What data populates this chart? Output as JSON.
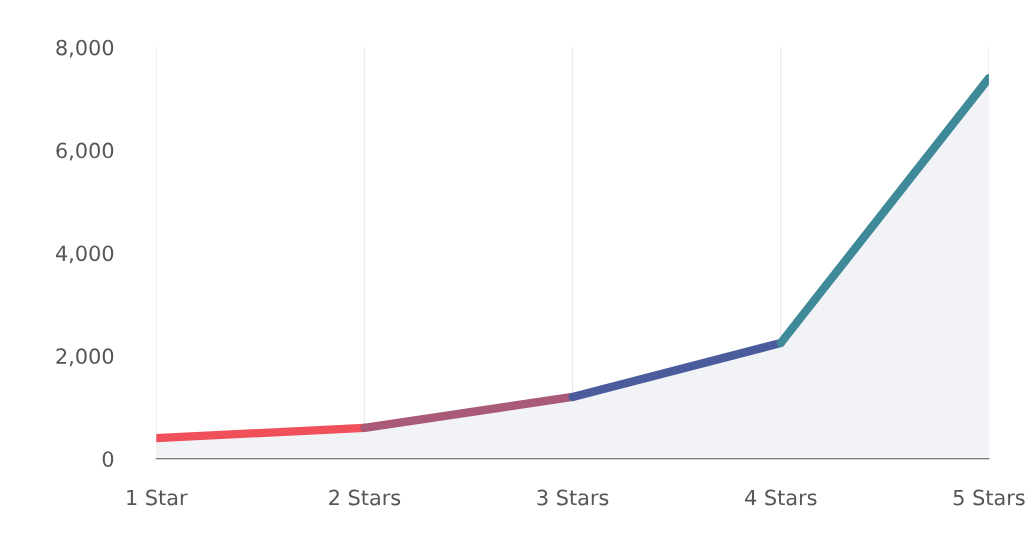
{
  "chart_data": {
    "type": "area",
    "categories": [
      "1 Star",
      "2 Stars",
      "3 Stars",
      "4 Stars",
      "5 Stars"
    ],
    "series": [
      {
        "colors": [
          "#f0505a",
          "#a85a78",
          "#4a5c9c",
          "#3f8a98",
          "#52a878"
        ],
        "values": [
          400,
          600,
          1200,
          2250,
          7400
        ]
      }
    ],
    "ylim": [
      0,
      8000
    ],
    "yticks": [
      0,
      {
        "value": 2000,
        "label": "2,000"
      },
      {
        "value": 4000,
        "label": "4,000"
      },
      {
        "value": 6000,
        "label": "6,000"
      },
      {
        "value": 8000,
        "label": "8,000"
      }
    ],
    "grid": "x",
    "legend": false
  }
}
